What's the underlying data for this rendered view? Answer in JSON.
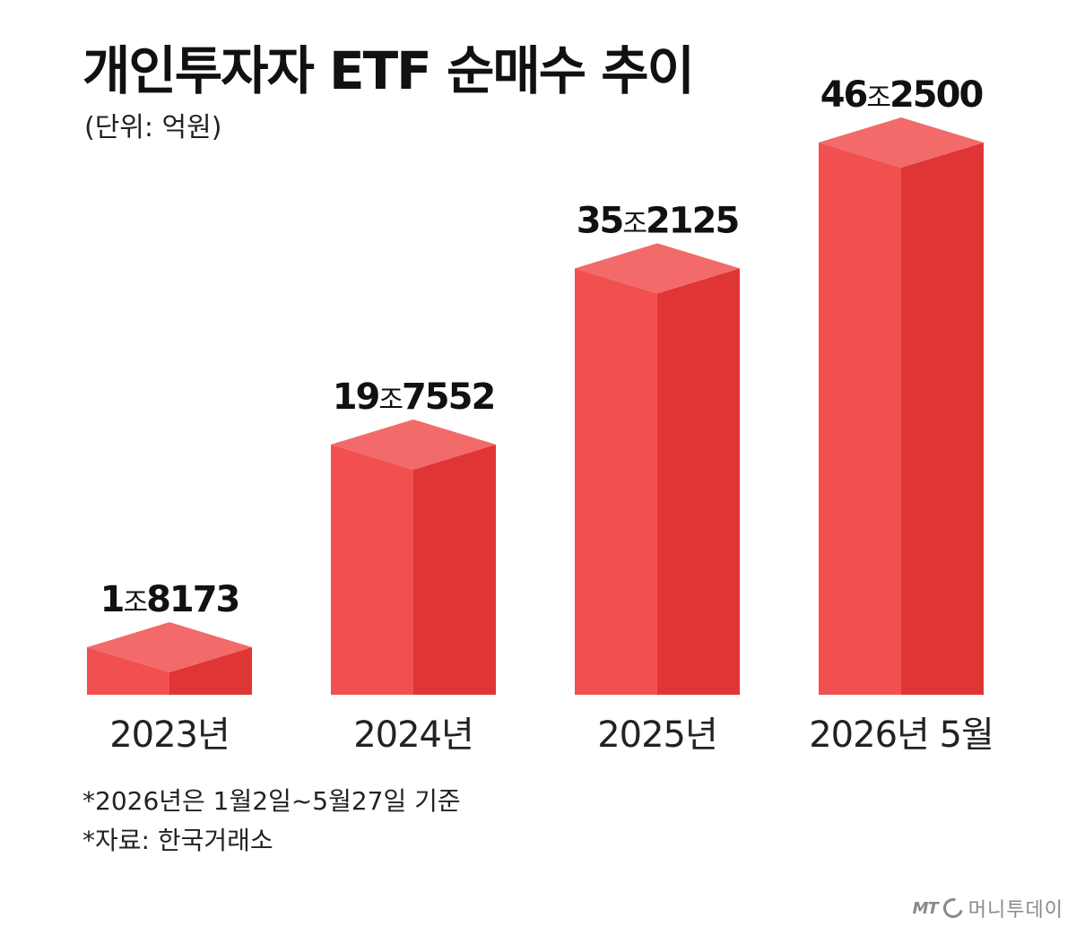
{
  "header": {
    "title": "개인투자자 ETF 순매수 추이",
    "unit_note": "(단위: 억원)"
  },
  "chart_data": {
    "type": "bar",
    "title": "개인투자자 ETF 순매수 추이",
    "ylabel": "(단위: 억원)",
    "categories": [
      "2023년",
      "2024년",
      "2025년",
      "2026년 5월"
    ],
    "values": [
      18173,
      197552,
      352125,
      462500
    ],
    "data_labels": [
      {
        "jo": "1",
        "unit": "조",
        "rest": "8173"
      },
      {
        "jo": "19",
        "unit": "조",
        "rest": "7552"
      },
      {
        "jo": "35",
        "unit": "조",
        "rest": "2125"
      },
      {
        "jo": "46",
        "unit": "조",
        "rest": "2500"
      }
    ],
    "ylim": [
      0,
      462500
    ],
    "grid": false,
    "colors": {
      "front": "#f25050",
      "side": "#e03535",
      "top": "#f26a6a"
    }
  },
  "footnotes": [
    "*2026년은 1월2일~5월27일 기준",
    "*자료: 한국거래소"
  ],
  "brand": {
    "logo_mark": "MT",
    "logo_icon": "ring-icon",
    "name": "머니투데이"
  }
}
